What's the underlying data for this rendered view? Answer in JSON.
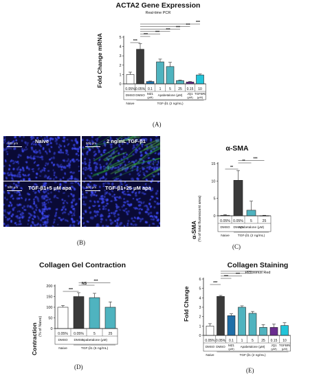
{
  "figure": {
    "panelA": {
      "title": "ACTA2 Gene Expression",
      "subtitle": "Real-time PCR",
      "label": "(A)",
      "ylabel": "Fold Change mRNA"
    },
    "panelB": {
      "label": "(B)",
      "images": [
        {
          "label": "Naive",
          "scale": "500 μm"
        },
        {
          "label": "2 ng/mL  TGF-β1",
          "scale": "500 μm"
        },
        {
          "label": "TGF-β1+5 μM apa",
          "scale": "500 μm"
        },
        {
          "label": "TGF-β1+25 μM apa",
          "scale": "500 μm"
        }
      ]
    },
    "panelC": {
      "title": "α-SMA",
      "label": "(C)",
      "ylabel": "α-SMA",
      "ylabel_sub": "(% of total fluorescent area)"
    },
    "panelD": {
      "title": "Collagen Gel Contraction",
      "label": "(D)",
      "ylabel": "Contraction",
      "ylabel_sub": "(% of Naive)"
    },
    "panelE": {
      "title": "Collagen Staining",
      "subtitle": "Picrosirius Red",
      "label": "(E)",
      "ylabel": "Fold Change"
    }
  },
  "chart_data": [
    {
      "id": "A",
      "type": "bar",
      "title": "ACTA2 Gene Expression",
      "subtitle": "Real-time PCR",
      "ylabel": "Fold Change mRNA",
      "ylim": [
        0,
        5
      ],
      "yticks": [
        0,
        1,
        2,
        3,
        4,
        5
      ],
      "categories": [
        "0.05%",
        "0.05%",
        "0.1",
        "1",
        "5",
        "25",
        "0.15",
        "10"
      ],
      "row2": [
        "DMSO",
        "DMSO",
        "MZ1 (μM)",
        "",
        "Apabetalone (μM)",
        "",
        "JQ1 (μM)",
        "TGFBRi (μM)"
      ],
      "group_labels": [
        "Naive",
        "TGF-β1 (2 ng/mL)"
      ],
      "values": [
        1.0,
        3.7,
        0.25,
        2.35,
        1.85,
        0.35,
        0.2,
        0.95
      ],
      "errors": [
        0.25,
        0.6,
        0.05,
        0.3,
        0.45,
        0.05,
        0.05,
        0.1
      ],
      "colors": [
        "#ffffff",
        "#3a3a3a",
        "#1f6fa8",
        "#4fb3bf",
        "#4fb3bf",
        "#4fb3bf",
        "#6a2c8f",
        "#22c4d9"
      ],
      "significance": [
        "***",
        "***",
        "***",
        "***",
        "***",
        "***",
        "***"
      ]
    },
    {
      "id": "C",
      "type": "bar",
      "title": "α-SMA",
      "ylabel": "α-SMA (% of total fluorescent area)",
      "ylim": [
        0,
        15
      ],
      "yticks": [
        0,
        5,
        10,
        15
      ],
      "categories": [
        "0.05%",
        "0.05%",
        "5",
        "25"
      ],
      "row2": [
        "DMSO",
        "DMSO",
        "Apabetalone (μM)",
        ""
      ],
      "group_labels": [
        "Naive",
        "TGF-β1 (2 ng/mL)"
      ],
      "values": [
        0.15,
        10.2,
        1.6,
        0.05
      ],
      "errors": [
        0.2,
        2.8,
        2.6,
        0.1
      ],
      "colors": [
        "#ffffff",
        "#3a3a3a",
        "#4fb3bf",
        "#4fb3bf"
      ],
      "significance": [
        "**",
        "**",
        "***"
      ]
    },
    {
      "id": "D",
      "type": "bar",
      "title": "Collagen Gel Contraction",
      "ylabel": "Contraction (% of Naive)",
      "ylim": [
        0,
        200
      ],
      "yticks": [
        0,
        50,
        100,
        150,
        200
      ],
      "categories": [
        "0.05%",
        "0.05%",
        "5",
        "25"
      ],
      "row2": [
        "DMSO",
        "DMSO",
        "Apabetalone (μM)",
        ""
      ],
      "group_labels": [
        "Naive",
        "TGF-β1 (5 ng/mL)"
      ],
      "values": [
        100,
        150,
        145,
        100
      ],
      "errors": [
        8,
        18,
        20,
        25
      ],
      "colors": [
        "#ffffff",
        "#3a3a3a",
        "#4fb3bf",
        "#4fb3bf"
      ],
      "significance": [
        "***",
        "NS",
        "***"
      ]
    },
    {
      "id": "E",
      "type": "bar",
      "title": "Collagen Staining",
      "subtitle": "Picrosirius Red",
      "ylabel": "Fold Change",
      "ylim": [
        0,
        6
      ],
      "yticks": [
        0,
        1,
        2,
        3,
        4,
        5,
        6
      ],
      "categories": [
        "0.05%",
        "0.05%",
        "0.1",
        "1",
        "5",
        "25",
        "0.15",
        "10"
      ],
      "row2": [
        "DMSO",
        "DMSO",
        "MZ1 (μM)",
        "",
        "Apabetalone (μM)",
        "",
        "JQ1 (μM)",
        "TGFBRi (μM)"
      ],
      "group_labels": [
        "Naive",
        "TGF-β1 (2 ng/mL)"
      ],
      "values": [
        1.0,
        4.15,
        2.1,
        3.0,
        2.35,
        0.85,
        0.85,
        1.05
      ],
      "errors": [
        0.25,
        0.1,
        0.2,
        0.15,
        0.2,
        0.3,
        0.35,
        0.3
      ],
      "colors": [
        "#ffffff",
        "#3a3a3a",
        "#1f6fa8",
        "#4fb3bf",
        "#4fb3bf",
        "#4fb3bf",
        "#6a2c8f",
        "#22c4d9"
      ],
      "significance": [
        "***",
        "***",
        "***",
        "***",
        "***",
        "***",
        "***"
      ]
    }
  ]
}
